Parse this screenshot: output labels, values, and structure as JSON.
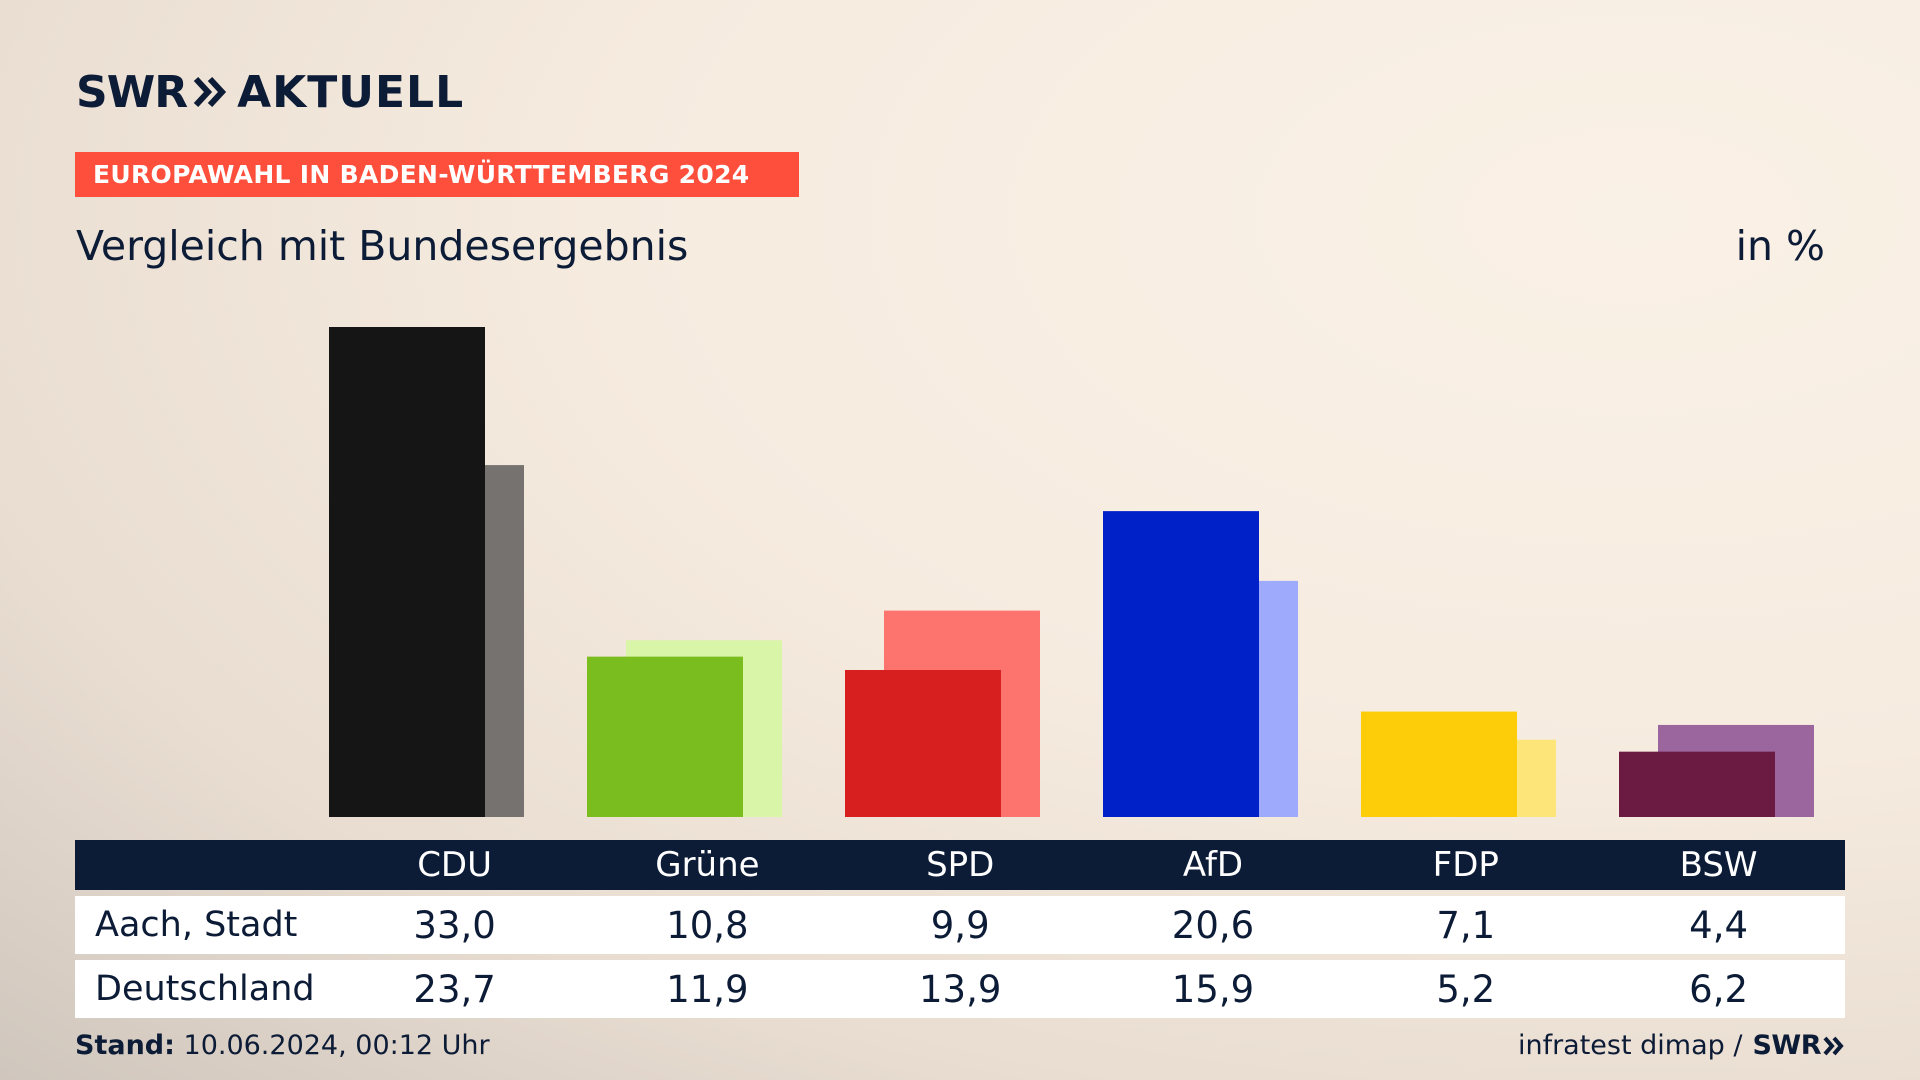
{
  "header": {
    "logo_swr": "SWR",
    "logo_aktuell": "AKTUELL",
    "badge": "EUROPAWAHL IN BADEN-WÜRTTEMBERG 2024",
    "subtitle": "Vergleich mit Bundesergebnis",
    "unit": "in %"
  },
  "chart_data": {
    "type": "bar",
    "categories": [
      "CDU",
      "Grüne",
      "SPD",
      "AfD",
      "FDP",
      "BSW"
    ],
    "series": [
      {
        "name": "Aach, Stadt",
        "values": [
          33.0,
          10.8,
          9.9,
          20.6,
          7.1,
          4.4
        ]
      },
      {
        "name": "Deutschland",
        "values": [
          23.7,
          11.9,
          13.9,
          15.9,
          5.2,
          6.2
        ]
      }
    ],
    "colors_primary": [
      "#151515",
      "#7abd1e",
      "#d81f20",
      "#0020c8",
      "#fdcd0a",
      "#6b1a41"
    ],
    "colors_secondary": [
      "#757270",
      "#d8f5a8",
      "#fd736e",
      "#9eabfd",
      "#fde579",
      "#9b659d"
    ],
    "ylim": [
      0,
      33
    ]
  },
  "table": {
    "headers": [
      "CDU",
      "Grüne",
      "SPD",
      "AfD",
      "FDP",
      "BSW"
    ],
    "rows": [
      {
        "label": "Aach, Stadt",
        "values": [
          "33,0",
          "10,8",
          "9,9",
          "20,6",
          "7,1",
          "4,4"
        ]
      },
      {
        "label": "Deutschland",
        "values": [
          "23,7",
          "11,9",
          "13,9",
          "15,9",
          "5,2",
          "6,2"
        ]
      }
    ]
  },
  "footer": {
    "stand_label": "Stand:",
    "stand_value": "10.06.2024, 00:12 Uhr",
    "source": "infratest dimap /",
    "source_logo": "SWR"
  }
}
